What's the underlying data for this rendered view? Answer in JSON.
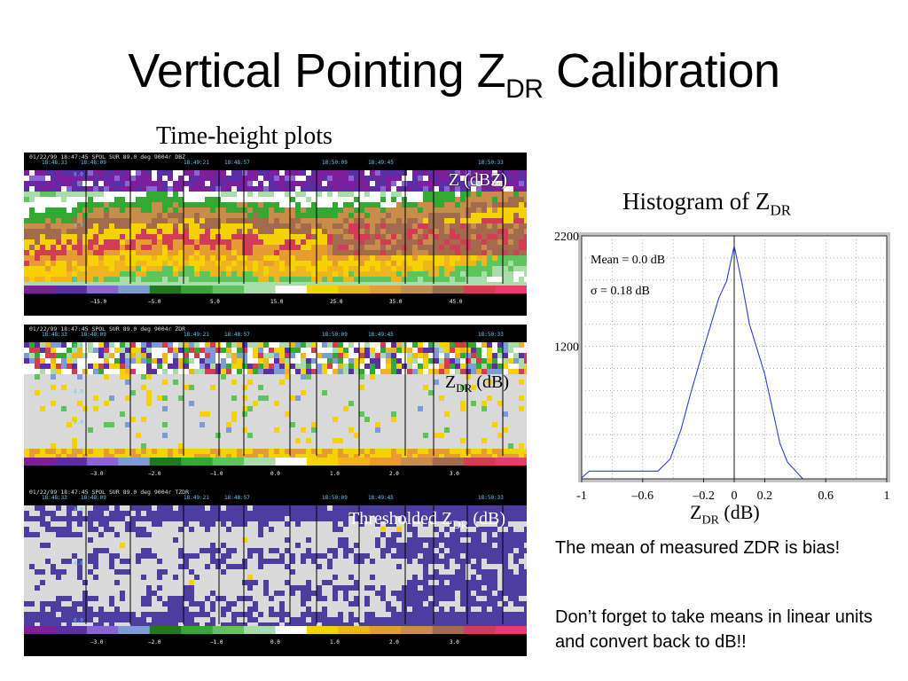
{
  "slide": {
    "title_main": "Vertical Pointing Z",
    "title_sub": "DR",
    "title_end": " Calibration",
    "thp_title": "Time-height plots",
    "hist_title_main": "Histogram of Z",
    "hist_title_sub": "DR",
    "hist_xlabel_main": "Z",
    "hist_xlabel_sub": "DR",
    "hist_xlabel_end": " (dB)",
    "note_1": "The mean of measured ZDR is bias!",
    "note_2": "Don’t forget to take means in linear units and convert back to dB!!"
  },
  "panels": {
    "z": {
      "header_text": "01/22/99 18:47:45  SPOL    SUR   89.0 deg 9004r DBZ",
      "label": "Z (dBZ)",
      "time_ticks_top": [
        "18:48:09",
        "18:48:57",
        "18:49:45",
        "18:50:33"
      ],
      "time_ticks_bottom": [
        "18:48:33",
        "18:49:21",
        "18:50:09"
      ],
      "height_markers": [
        "8.0",
        "4.0",
        "0.0"
      ],
      "colorbar_labels": [
        "−15.0",
        "−5.0",
        "5.0",
        "15.0",
        "25.0",
        "35.0",
        "45.0"
      ],
      "colors": [
        "#7d1f9c",
        "#5a2ea6",
        "#8a64d6",
        "#7d9bd6",
        "#1e7a1e",
        "#33a833",
        "#5ec45e",
        "#a8dca8",
        "#ffffff",
        "#f5d200",
        "#f0b41e",
        "#e69c32",
        "#c98c4a",
        "#a36b4e",
        "#d23c55",
        "#e63c6e"
      ]
    },
    "zdr": {
      "header_text": "01/22/99 18:47:45  SPOL    SUR   89.0 deg 9004r ZDR",
      "label_main": "Z",
      "label_sub": "DR",
      "label_end": " (dB)",
      "time_ticks_top": [
        "18:48:09",
        "18:48:57",
        "18:49:45",
        "18:50:33"
      ],
      "time_ticks_bottom": [
        "18:48:33",
        "18:49:21",
        "18:50:09"
      ],
      "height_markers": [
        "8.0",
        "4.0",
        "2.0",
        "0.0"
      ],
      "colorbar_labels": [
        "−3.0",
        "−2.0",
        "−1.0",
        "0.0",
        "1.0",
        "2.0",
        "3.0"
      ],
      "colors": [
        "#7d1f9c",
        "#5a2ea6",
        "#8a64d6",
        "#7d9bd6",
        "#1e7a1e",
        "#33a833",
        "#5ec45e",
        "#a8dca8",
        "#ffffff",
        "#f5d200",
        "#f0b41e",
        "#e69c32",
        "#c98c4a",
        "#a36b4e",
        "#d23c55",
        "#e63c6e"
      ]
    },
    "tzdr": {
      "header_text": "01/22/99 18:47:45  SPOL    SUR   89.0 deg 9004r TZDR",
      "label_main": "Thresholded Z",
      "label_sub": "DR",
      "label_end": " (dB)",
      "time_ticks_top": [
        "18:48:09",
        "18:48:57",
        "18:49:45",
        "18:50:33"
      ],
      "time_ticks_bottom": [
        "18:48:33",
        "18:49:21",
        "18:50:09"
      ],
      "height_markers": [
        "8.0",
        "4.0",
        "0.0"
      ],
      "colorbar_labels": [
        "−3.0",
        "−2.0",
        "−1.0",
        "0.0",
        "1.0",
        "2.0",
        "3.0"
      ],
      "colors": [
        "#7d1f9c",
        "#5a2ea6",
        "#8a64d6",
        "#7d9bd6",
        "#1e7a1e",
        "#33a833",
        "#5ec45e",
        "#a8dca8",
        "#ffffff",
        "#f5d200",
        "#f0b41e",
        "#e69c32",
        "#c98c4a",
        "#a36b4e",
        "#d23c55",
        "#e63c6e"
      ]
    }
  },
  "chart_data": {
    "type": "line",
    "title": "Histogram of ZDR",
    "xlabel": "ZDR (dB)",
    "ylabel": "",
    "xlim": [
      -1,
      1
    ],
    "ylim": [
      0,
      2200
    ],
    "x_ticks": [
      -1,
      -0.6,
      -0.2,
      0,
      0.2,
      0.6,
      1
    ],
    "x_tick_labels": [
      "-1",
      "–0.6",
      "–0.2",
      "0",
      "0.2",
      "0.6",
      "1"
    ],
    "y_tick_labels": [
      {
        "value": 2200,
        "label": "2200"
      },
      {
        "value": 1200,
        "label": "1200"
      }
    ],
    "grid": true,
    "annotations": [
      "Mean = 0.0 dB",
      "σ = 0.18 dB"
    ],
    "line_color": "#2a3fd6",
    "series": [
      {
        "x": [
          -1.0,
          -0.95,
          -0.5,
          -0.42,
          -0.35,
          -0.28,
          -0.2,
          -0.1,
          -0.05,
          0.0,
          0.05,
          0.1,
          0.2,
          0.3,
          0.35,
          0.45
        ],
        "values": [
          10,
          70,
          70,
          180,
          440,
          800,
          1180,
          1640,
          1790,
          2110,
          1780,
          1400,
          950,
          320,
          150,
          0
        ]
      }
    ]
  }
}
